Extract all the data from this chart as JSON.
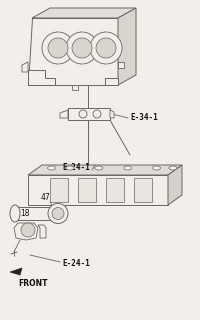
{
  "bg_color": "#f2eeea",
  "line_color": "#666666",
  "dark_color": "#222222",
  "text_color": "#111111",
  "labels": {
    "E341": "E-34-1",
    "E241_top": "E-24-1",
    "E241_bot": "E-24-1",
    "num18": "18",
    "num47": "47",
    "front": "FRONT"
  }
}
